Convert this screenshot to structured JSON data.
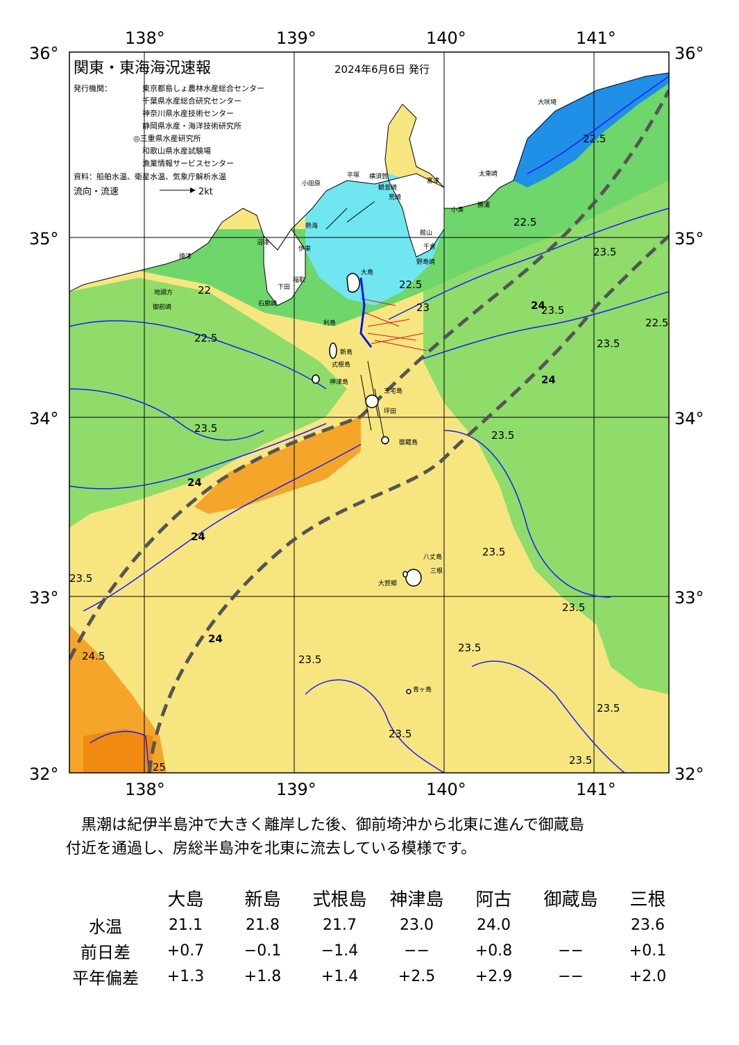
{
  "header": {
    "title": "関東・東海海況速報",
    "date": "2024年6月6日 発行",
    "issuers_label": "発行機関：",
    "issuers": [
      "東京都島しょ農林水産総合センター",
      "千葉県水産総合研究センター",
      "神奈川県水産技術センター",
      "静岡県水産・海洋技術研究所",
      "◎三重県水産研究所",
      "和歌山県水産試験場",
      "漁業情報サービスセンター"
    ],
    "source": "資料：船舶水温、衛星水温、気象庁解析水温",
    "legend_label": "流向・流速",
    "legend_scale": "2kt"
  },
  "axes": {
    "lon_ticks": [
      "138°",
      "139°",
      "140°",
      "141°"
    ],
    "lat_ticks": [
      "36°",
      "35°",
      "34°",
      "33°",
      "32°"
    ]
  },
  "chart_data": {
    "type": "map",
    "lon_range": [
      137.5,
      141.5
    ],
    "lat_range": [
      32.0,
      36.0
    ],
    "grid": true,
    "isotherm_labels": [
      "22",
      "22.5",
      "23",
      "23.5",
      "24",
      "24.5",
      "25"
    ],
    "kuroshio_axis": "dashed grey lines",
    "colors": {
      "land": "#ffffff",
      "sea_cool": "#1f8fe8",
      "sea_cyan": "#6fe6f0",
      "sea_green": "#6ed66a",
      "sea_yellow": "#f7e680",
      "sea_orange": "#f5a52a",
      "isotherm": "#1a1aff",
      "kuroshio": "#555555",
      "current_vector": "#e81010"
    }
  },
  "place_names": [
    "大吠埼",
    "太東崎",
    "勝浦",
    "野島崎",
    "千倉",
    "館山",
    "富津",
    "観音崎",
    "横須賀",
    "平塚",
    "小田原",
    "熱海",
    "伊東",
    "稲取",
    "下田",
    "石廊崎",
    "沼津",
    "焼津",
    "地頭方",
    "御前崎",
    "大島",
    "利島",
    "新島",
    "式根島",
    "神津島",
    "三宅島",
    "坪田",
    "御蔵島",
    "八丈島",
    "三根",
    "大賀郷",
    "青ヶ島",
    "荒崎",
    "小湊"
  ],
  "summary": [
    "黒潮は紀伊半島沖で大きく離岸した後、御前埼沖から北東に進んで御蔵島",
    "付近を通過し、房総半島沖を北東に流去している模様です。"
  ],
  "obs_table": {
    "stations": [
      "大島",
      "新島",
      "式根島",
      "神津島",
      "阿古",
      "御蔵島",
      "三根"
    ],
    "rows": [
      {
        "label": "水温",
        "values": [
          "21.1",
          "21.8",
          "21.7",
          "23.0",
          "24.0",
          "",
          "23.6"
        ]
      },
      {
        "label": "前日差",
        "values": [
          "+0.7",
          "−0.1",
          "−1.4",
          "−−",
          "+0.8",
          "−−",
          "+0.1"
        ]
      },
      {
        "label": "平年偏差",
        "values": [
          "+1.3",
          "+1.8",
          "+1.4",
          "+2.5",
          "+2.9",
          "−−",
          "+2.0"
        ]
      }
    ]
  }
}
